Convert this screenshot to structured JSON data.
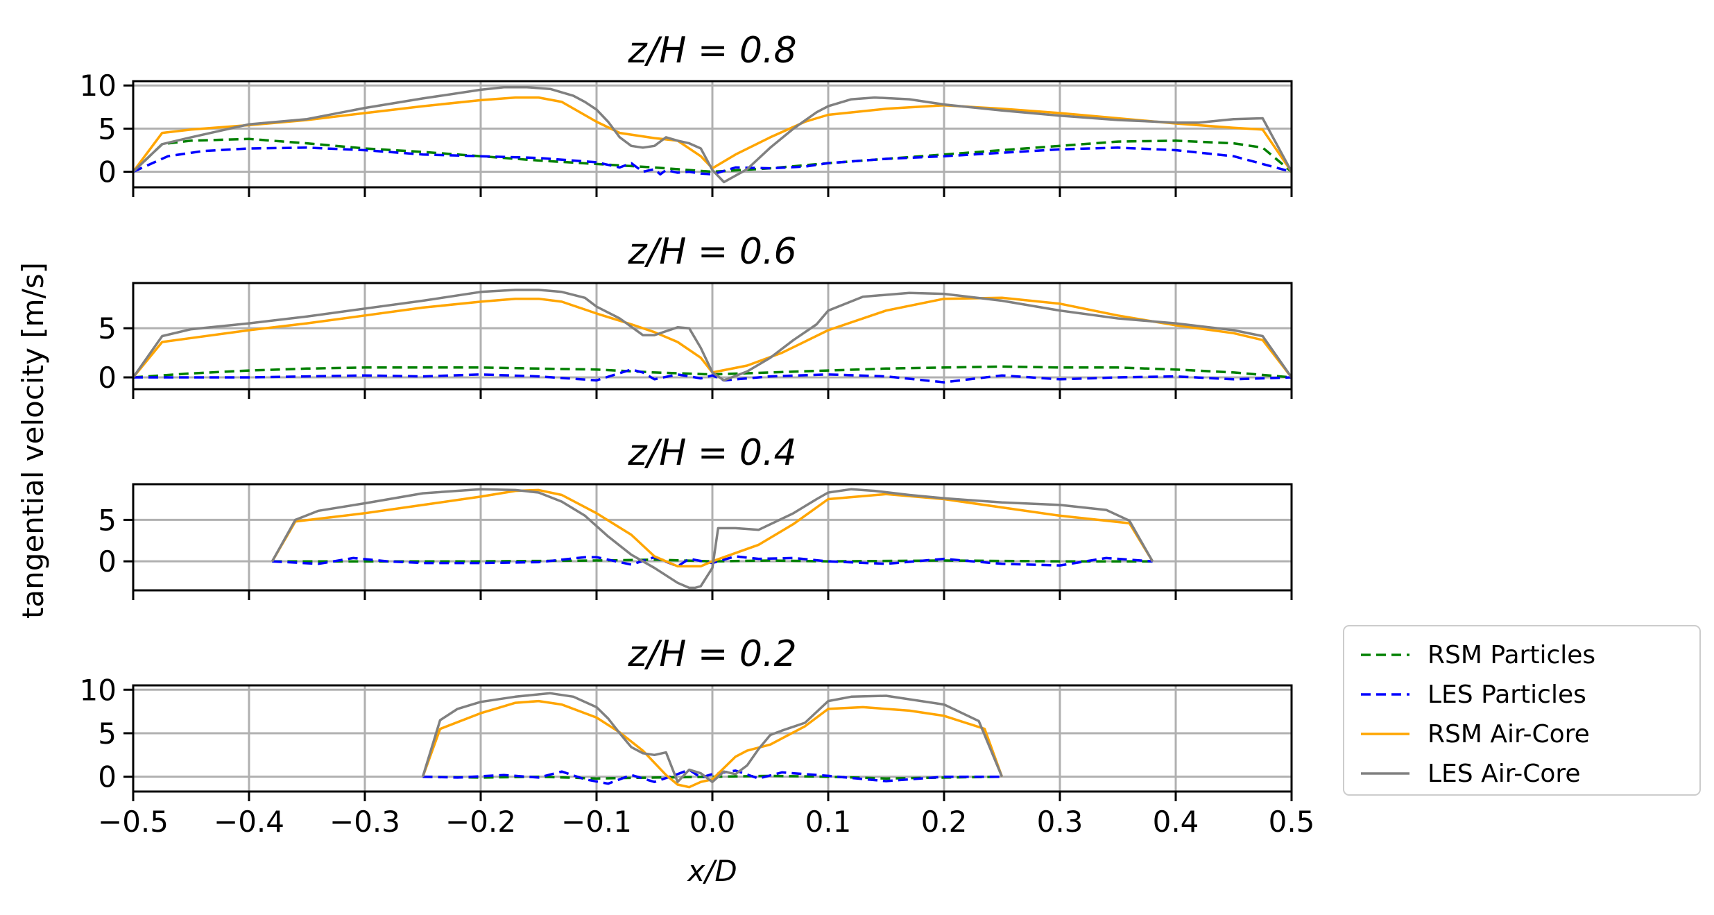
{
  "chart_data": [
    {
      "type": "line",
      "title": "z/H = 0.8",
      "ylim": [
        -1.8,
        10.5
      ],
      "yticks": [
        "0",
        "5",
        "10"
      ],
      "series": [
        {
          "name": "RSM Particles",
          "x": [
            -0.5,
            -0.475,
            -0.45,
            -0.4,
            -0.35,
            -0.3,
            -0.25,
            -0.2,
            -0.15,
            -0.1,
            -0.05,
            0.0,
            0.05,
            0.1,
            0.15,
            0.2,
            0.25,
            0.3,
            0.35,
            0.4,
            0.45,
            0.475,
            0.5
          ],
          "y": [
            0,
            3.2,
            3.6,
            3.8,
            3.3,
            2.7,
            2.3,
            1.8,
            1.3,
            0.9,
            0.5,
            0.0,
            0.4,
            1.0,
            1.5,
            2.0,
            2.5,
            3.0,
            3.5,
            3.6,
            3.3,
            2.8,
            0
          ]
        },
        {
          "name": "LES Particles",
          "x": [
            -0.5,
            -0.47,
            -0.44,
            -0.4,
            -0.35,
            -0.3,
            -0.25,
            -0.2,
            -0.15,
            -0.1,
            -0.08,
            -0.07,
            -0.06,
            -0.05,
            -0.045,
            -0.04,
            -0.03,
            -0.02,
            -0.01,
            0.0,
            0.02,
            0.05,
            0.08,
            0.1,
            0.15,
            0.2,
            0.25,
            0.3,
            0.35,
            0.4,
            0.45,
            0.5
          ],
          "y": [
            0,
            1.8,
            2.4,
            2.7,
            2.8,
            2.5,
            2.0,
            1.8,
            1.6,
            1.1,
            0.5,
            1.0,
            0.0,
            0.3,
            -0.3,
            0.2,
            -0.1,
            0.0,
            -0.2,
            -0.3,
            0.5,
            0.4,
            0.6,
            1.0,
            1.5,
            1.8,
            2.2,
            2.6,
            2.8,
            2.5,
            1.8,
            0
          ]
        },
        {
          "name": "RSM Air-Core",
          "x": [
            -0.5,
            -0.475,
            -0.45,
            -0.4,
            -0.35,
            -0.3,
            -0.25,
            -0.2,
            -0.17,
            -0.15,
            -0.13,
            -0.1,
            -0.08,
            -0.05,
            -0.03,
            -0.01,
            0.0,
            0.02,
            0.05,
            0.08,
            0.1,
            0.15,
            0.2,
            0.25,
            0.3,
            0.35,
            0.4,
            0.45,
            0.475,
            0.5
          ],
          "y": [
            0,
            4.5,
            4.9,
            5.4,
            6.0,
            6.8,
            7.6,
            8.3,
            8.6,
            8.6,
            8.1,
            5.8,
            4.5,
            3.9,
            3.6,
            1.8,
            0.4,
            2.0,
            4.0,
            5.8,
            6.6,
            7.3,
            7.7,
            7.3,
            6.8,
            6.2,
            5.6,
            5.1,
            4.9,
            0
          ]
        },
        {
          "name": "LES Air-Core",
          "x": [
            -0.5,
            -0.475,
            -0.45,
            -0.4,
            -0.35,
            -0.3,
            -0.25,
            -0.2,
            -0.18,
            -0.16,
            -0.14,
            -0.12,
            -0.11,
            -0.1,
            -0.09,
            -0.08,
            -0.07,
            -0.06,
            -0.05,
            -0.04,
            -0.03,
            -0.02,
            -0.01,
            0.0,
            0.01,
            0.03,
            0.05,
            0.07,
            0.09,
            0.1,
            0.12,
            0.14,
            0.17,
            0.2,
            0.25,
            0.3,
            0.35,
            0.4,
            0.42,
            0.45,
            0.475,
            0.5
          ],
          "y": [
            0,
            3.2,
            4.0,
            5.5,
            6.1,
            7.4,
            8.5,
            9.5,
            9.8,
            9.8,
            9.6,
            8.8,
            8.1,
            7.2,
            5.8,
            4.0,
            3.0,
            2.8,
            3.0,
            4.0,
            3.6,
            3.3,
            2.7,
            0.2,
            -1.2,
            0.3,
            2.8,
            5.0,
            6.9,
            7.6,
            8.4,
            8.6,
            8.4,
            7.8,
            7.1,
            6.5,
            6.0,
            5.7,
            5.7,
            6.1,
            6.2,
            0
          ]
        }
      ]
    },
    {
      "type": "line",
      "title": "z/H = 0.6",
      "ylim": [
        -1.2,
        9.6
      ],
      "yticks": [
        "0",
        "5"
      ],
      "series": [
        {
          "name": "RSM Particles",
          "x": [
            -0.5,
            -0.45,
            -0.4,
            -0.35,
            -0.3,
            -0.25,
            -0.2,
            -0.15,
            -0.1,
            -0.05,
            0.0,
            0.05,
            0.1,
            0.15,
            0.2,
            0.25,
            0.3,
            0.35,
            0.4,
            0.45,
            0.5
          ],
          "y": [
            0,
            0.4,
            0.7,
            0.9,
            1.0,
            1.0,
            1.0,
            0.9,
            0.8,
            0.5,
            0.3,
            0.5,
            0.7,
            0.9,
            1.0,
            1.1,
            1.0,
            1.0,
            0.8,
            0.5,
            0
          ]
        },
        {
          "name": "LES Particles",
          "x": [
            -0.5,
            -0.45,
            -0.4,
            -0.35,
            -0.3,
            -0.25,
            -0.2,
            -0.15,
            -0.1,
            -0.07,
            -0.06,
            -0.05,
            -0.03,
            -0.01,
            0.0,
            0.01,
            0.05,
            0.1,
            0.15,
            0.2,
            0.25,
            0.3,
            0.35,
            0.4,
            0.45,
            0.5
          ],
          "y": [
            0,
            0.0,
            0.0,
            0.1,
            0.2,
            0.1,
            0.3,
            0.1,
            -0.3,
            0.8,
            0.5,
            -0.2,
            0.3,
            -0.1,
            0.2,
            -0.3,
            0.1,
            0.3,
            0.1,
            -0.5,
            0.2,
            -0.2,
            0.0,
            0.1,
            -0.2,
            0
          ]
        },
        {
          "name": "RSM Air-Core",
          "x": [
            -0.5,
            -0.475,
            -0.45,
            -0.4,
            -0.35,
            -0.3,
            -0.25,
            -0.2,
            -0.17,
            -0.15,
            -0.13,
            -0.1,
            -0.07,
            -0.05,
            -0.03,
            -0.01,
            0.0,
            0.03,
            0.06,
            0.1,
            0.15,
            0.2,
            0.25,
            0.3,
            0.35,
            0.4,
            0.45,
            0.475,
            0.5
          ],
          "y": [
            0,
            3.6,
            4.0,
            4.8,
            5.5,
            6.3,
            7.1,
            7.7,
            8.0,
            8.0,
            7.7,
            6.5,
            5.4,
            4.6,
            3.6,
            2.0,
            0.5,
            1.2,
            2.5,
            4.8,
            6.8,
            8.0,
            8.1,
            7.5,
            6.3,
            5.3,
            4.5,
            3.8,
            0
          ]
        },
        {
          "name": "LES Air-Core",
          "x": [
            -0.5,
            -0.475,
            -0.45,
            -0.4,
            -0.35,
            -0.3,
            -0.25,
            -0.2,
            -0.17,
            -0.15,
            -0.13,
            -0.11,
            -0.1,
            -0.08,
            -0.06,
            -0.05,
            -0.03,
            -0.02,
            -0.01,
            0.0,
            0.01,
            0.03,
            0.05,
            0.07,
            0.09,
            0.1,
            0.13,
            0.17,
            0.2,
            0.25,
            0.3,
            0.35,
            0.4,
            0.45,
            0.475,
            0.5
          ],
          "y": [
            0,
            4.2,
            4.9,
            5.5,
            6.2,
            7.0,
            7.8,
            8.7,
            8.9,
            8.9,
            8.7,
            8.1,
            7.2,
            6.0,
            4.3,
            4.3,
            5.1,
            5.0,
            3.0,
            0.5,
            -0.3,
            0.6,
            2.0,
            3.8,
            5.4,
            6.8,
            8.2,
            8.6,
            8.5,
            7.8,
            6.8,
            6.0,
            5.5,
            4.8,
            4.2,
            0
          ]
        }
      ]
    },
    {
      "type": "line",
      "title": "z/H = 0.4",
      "ylim": [
        -3.5,
        9.3
      ],
      "yticks": [
        "0",
        "5"
      ],
      "series": [
        {
          "name": "RSM Particles",
          "x": [
            -0.38,
            -0.3,
            -0.2,
            -0.1,
            -0.05,
            0.0,
            0.05,
            0.1,
            0.2,
            0.3,
            0.38
          ],
          "y": [
            0,
            0.0,
            0.0,
            0.1,
            0.2,
            0.0,
            0.1,
            0.0,
            0.1,
            0.0,
            0
          ]
        },
        {
          "name": "LES Particles",
          "x": [
            -0.38,
            -0.34,
            -0.31,
            -0.28,
            -0.25,
            -0.2,
            -0.15,
            -0.11,
            -0.1,
            -0.07,
            -0.05,
            -0.03,
            -0.02,
            0.0,
            0.01,
            0.02,
            0.04,
            0.07,
            0.1,
            0.15,
            0.2,
            0.25,
            0.3,
            0.34,
            0.38
          ],
          "y": [
            0,
            -0.3,
            0.4,
            0.0,
            -0.2,
            -0.2,
            -0.1,
            0.5,
            0.5,
            -0.4,
            0.5,
            -0.6,
            0.3,
            -0.2,
            0.2,
            0.6,
            0.3,
            0.4,
            0.0,
            -0.3,
            0.3,
            -0.3,
            -0.5,
            0.4,
            0
          ]
        },
        {
          "name": "RSM Air-Core",
          "x": [
            -0.38,
            -0.36,
            -0.3,
            -0.25,
            -0.2,
            -0.17,
            -0.15,
            -0.13,
            -0.1,
            -0.07,
            -0.05,
            -0.03,
            -0.01,
            0.0,
            0.02,
            0.04,
            0.07,
            0.1,
            0.15,
            0.2,
            0.25,
            0.3,
            0.36,
            0.38
          ],
          "y": [
            0,
            4.8,
            5.8,
            6.8,
            7.8,
            8.5,
            8.6,
            8.0,
            5.8,
            3.2,
            0.6,
            -0.6,
            -0.6,
            0.0,
            1.0,
            2.0,
            4.5,
            7.5,
            8.1,
            7.5,
            6.5,
            5.5,
            4.6,
            0
          ]
        },
        {
          "name": "LES Air-Core",
          "x": [
            -0.38,
            -0.36,
            -0.34,
            -0.3,
            -0.25,
            -0.2,
            -0.17,
            -0.15,
            -0.13,
            -0.11,
            -0.09,
            -0.07,
            -0.05,
            -0.03,
            -0.02,
            -0.015,
            -0.01,
            0.0,
            0.005,
            0.02,
            0.04,
            0.07,
            0.09,
            0.1,
            0.12,
            0.14,
            0.17,
            0.2,
            0.25,
            0.3,
            0.34,
            0.36,
            0.38
          ],
          "y": [
            0,
            5.0,
            6.1,
            7.0,
            8.2,
            8.7,
            8.6,
            8.3,
            7.2,
            5.5,
            3.0,
            0.8,
            -0.8,
            -2.6,
            -3.2,
            -3.2,
            -3.0,
            -0.8,
            4.0,
            4.0,
            3.8,
            5.8,
            7.5,
            8.3,
            8.7,
            8.5,
            8.0,
            7.6,
            7.1,
            6.8,
            6.2,
            4.9,
            0
          ]
        }
      ]
    },
    {
      "type": "line",
      "title": "z/H = 0.2",
      "ylim": [
        -1.7,
        10.5
      ],
      "yticks": [
        "0",
        "5",
        "10"
      ],
      "series": [
        {
          "name": "RSM Particles",
          "x": [
            -0.25,
            -0.2,
            -0.15,
            -0.1,
            -0.05,
            0.0,
            0.05,
            0.1,
            0.15,
            0.2,
            0.25
          ],
          "y": [
            0,
            -0.1,
            0.0,
            -0.2,
            -0.1,
            0.0,
            0.1,
            0.0,
            -0.2,
            -0.1,
            0
          ]
        },
        {
          "name": "LES Particles",
          "x": [
            -0.25,
            -0.22,
            -0.18,
            -0.15,
            -0.13,
            -0.11,
            -0.09,
            -0.07,
            -0.05,
            -0.03,
            -0.02,
            -0.01,
            0.0,
            0.02,
            0.04,
            0.06,
            0.1,
            0.15,
            0.2,
            0.25
          ],
          "y": [
            0,
            -0.1,
            0.2,
            -0.1,
            0.6,
            -0.3,
            -0.8,
            0.2,
            -0.6,
            0.3,
            0.8,
            -0.1,
            0.3,
            0.7,
            -0.2,
            0.5,
            0.1,
            -0.5,
            0.0,
            0
          ]
        },
        {
          "name": "RSM Air-Core",
          "x": [
            -0.25,
            -0.235,
            -0.2,
            -0.17,
            -0.15,
            -0.13,
            -0.1,
            -0.08,
            -0.06,
            -0.04,
            -0.03,
            -0.02,
            -0.01,
            0.0,
            0.02,
            0.03,
            0.05,
            0.08,
            0.1,
            0.13,
            0.17,
            0.2,
            0.235,
            0.25
          ],
          "y": [
            0,
            5.5,
            7.3,
            8.5,
            8.7,
            8.3,
            6.8,
            5.1,
            3.0,
            0.2,
            -0.9,
            -1.2,
            -0.6,
            -0.3,
            2.3,
            3.0,
            3.7,
            5.8,
            7.8,
            8.0,
            7.6,
            7.0,
            5.5,
            0
          ]
        },
        {
          "name": "LES Air-Core",
          "x": [
            -0.25,
            -0.235,
            -0.22,
            -0.2,
            -0.17,
            -0.14,
            -0.12,
            -0.1,
            -0.09,
            -0.08,
            -0.07,
            -0.06,
            -0.05,
            -0.04,
            -0.03,
            -0.02,
            -0.01,
            0.0,
            0.01,
            0.02,
            0.03,
            0.04,
            0.05,
            0.06,
            0.08,
            0.1,
            0.12,
            0.15,
            0.2,
            0.23,
            0.25
          ],
          "y": [
            0,
            6.5,
            7.8,
            8.6,
            9.2,
            9.6,
            9.2,
            8.0,
            6.7,
            5.0,
            3.4,
            2.7,
            2.5,
            2.8,
            -0.6,
            0.8,
            0.4,
            -0.6,
            0.6,
            0.3,
            1.3,
            3.2,
            4.8,
            5.3,
            6.2,
            8.7,
            9.2,
            9.3,
            8.3,
            6.4,
            0
          ]
        }
      ]
    }
  ],
  "colors": {
    "RSM Particles": "#008000",
    "LES Particles": "#0000ff",
    "RSM Air-Core": "#ffa500",
    "LES Air-Core": "#808080",
    "grid": "#b0b0b0"
  },
  "xticks": [
    "−0.5",
    "−0.4",
    "−0.3",
    "−0.2",
    "−0.1",
    "0.0",
    "0.1",
    "0.2",
    "0.3",
    "0.4",
    "0.5"
  ],
  "xlabel": "x/D",
  "ylabel": "tangential velocity [m/s]",
  "legend": [
    "RSM Particles",
    "LES Particles",
    "RSM Air-Core",
    "LES Air-Core"
  ]
}
